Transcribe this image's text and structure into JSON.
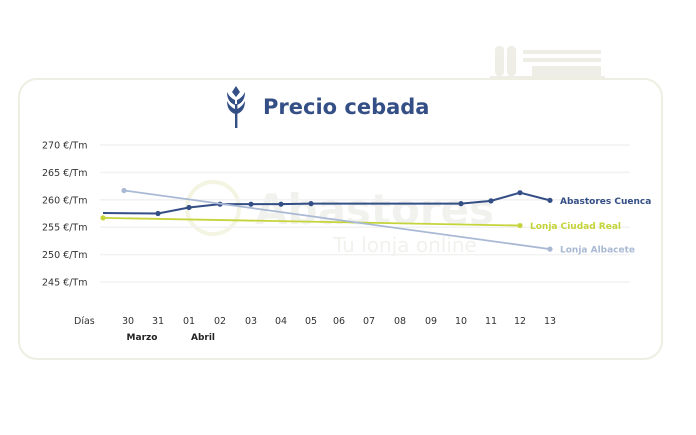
{
  "chart_data": {
    "type": "line",
    "title": "Precio cebada",
    "xlabel": "Días",
    "categories": [
      "30",
      "31",
      "01",
      "02",
      "03",
      "04",
      "05",
      "06",
      "07",
      "08",
      "09",
      "10",
      "11",
      "12",
      "13"
    ],
    "month_labels": [
      {
        "label": "Marzo",
        "at": "30"
      },
      {
        "label": "Abril",
        "at": "01"
      }
    ],
    "yticks": [
      "245 €/Tm",
      "250 €/Tm",
      "255 €/Tm",
      "260 €/Tm",
      "265 €/Tm",
      "270 €/Tm"
    ],
    "ytick_values": [
      245,
      250,
      255,
      260,
      265,
      270
    ],
    "ylim": [
      243,
      272
    ],
    "grid": true,
    "legend": "end-of-line labels",
    "series": [
      {
        "name": "Abastores Cuenca",
        "color": "#344e86",
        "values": [
          257.6,
          257.5,
          258.6,
          259.2,
          259.2,
          259.2,
          259.3,
          null,
          null,
          null,
          null,
          259.3,
          259.8,
          261.3,
          259.9
        ]
      },
      {
        "name": "Lonja Ciudad Real",
        "color": "#c5d43a",
        "values": [
          256.7,
          null,
          null,
          null,
          null,
          null,
          null,
          null,
          null,
          null,
          null,
          null,
          null,
          255.3,
          null
        ]
      },
      {
        "name": "Lonja Albacete",
        "color": "#a9b9d4",
        "values": [
          261.7,
          null,
          null,
          null,
          null,
          null,
          null,
          null,
          null,
          null,
          null,
          null,
          null,
          null,
          251.0
        ]
      }
    ]
  },
  "watermark": {
    "brand": "Abastores",
    "tagline": "Tu lonja online"
  }
}
